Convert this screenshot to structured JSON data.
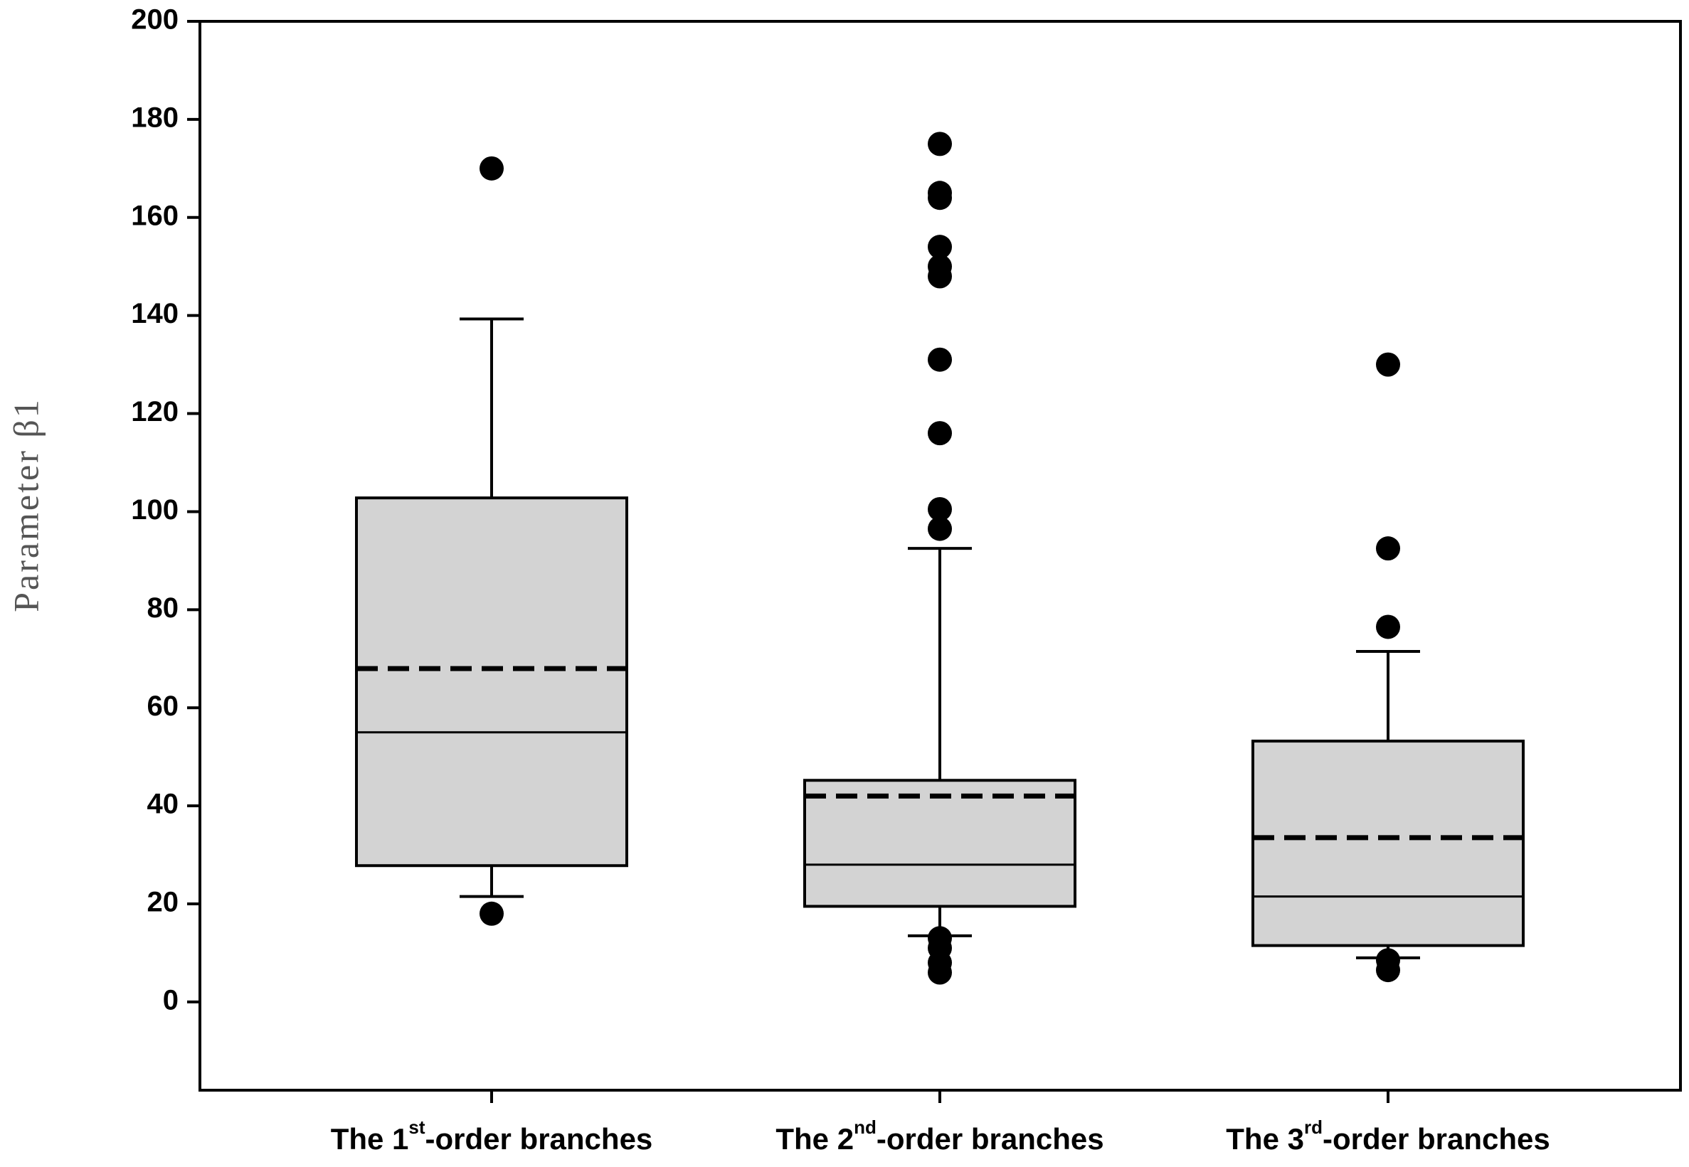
{
  "chart_data": {
    "type": "box",
    "y_label": "Parameter β1",
    "categories": [
      [
        "The 1",
        "st",
        "-order branches"
      ],
      [
        "The 2",
        "nd",
        "-order branches"
      ],
      [
        "The 3",
        "rd",
        "-order branches"
      ]
    ],
    "boxes": [
      {
        "whislo": 21.5,
        "q1": 27.8,
        "med": 55,
        "mean": 68,
        "q3": 102.8,
        "whishi": 139.3,
        "fliers": [
          170,
          18
        ]
      },
      {
        "whislo": 13.5,
        "q1": 19.5,
        "med": 28,
        "mean": 42,
        "q3": 45.2,
        "whishi": 92.5,
        "fliers": [
          175,
          165,
          164,
          154,
          150,
          148,
          131,
          116,
          100.5,
          96.5,
          13,
          11,
          8,
          6
        ]
      },
      {
        "whislo": 9,
        "q1": 11.5,
        "med": 21.5,
        "mean": 33.5,
        "q3": 53.2,
        "whishi": 71.5,
        "fliers": [
          130,
          92.5,
          76.5,
          8.5,
          6.5
        ]
      }
    ],
    "box_color": "#d3d3d3",
    "ylim": [
      -18,
      200
    ],
    "yticks": [
      0,
      20,
      40,
      60,
      80,
      100,
      120,
      140,
      160,
      180,
      200
    ]
  }
}
